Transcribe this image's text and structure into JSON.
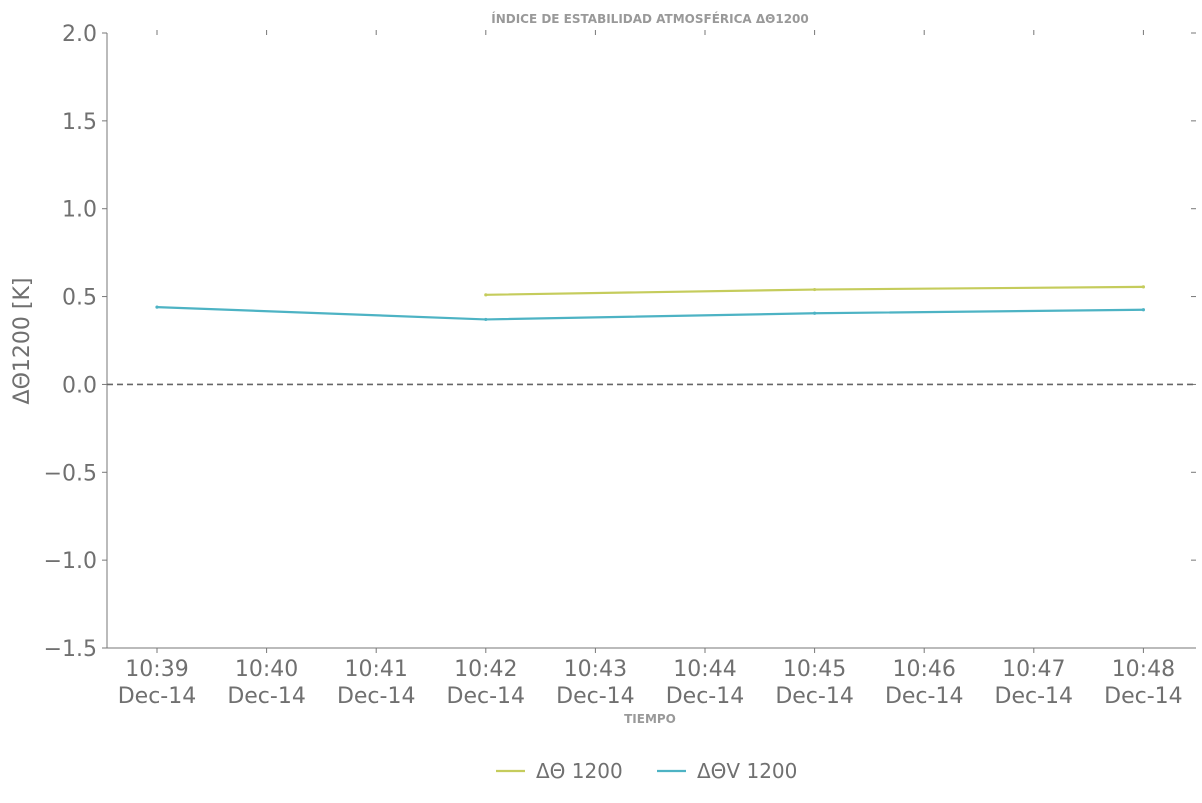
{
  "chart_data": {
    "type": "line",
    "title": "ÍNDICE DE ESTABILIDAD ATMOSFÉRICA ΔΘ1200",
    "xlabel": "TIEMPO",
    "ylabel": "ΔΘ1200 [K]",
    "ylim": [
      -1.5,
      2.0
    ],
    "yticks": [
      "2.0",
      "1.5",
      "1.0",
      "0.5",
      "0.0",
      "−0.5",
      "−1.0",
      "−1.5"
    ],
    "ytick_values": [
      2.0,
      1.5,
      1.0,
      0.5,
      0.0,
      -0.5,
      -1.0,
      -1.5
    ],
    "x": [
      "10:39",
      "10:40",
      "10:41",
      "10:42",
      "10:43",
      "10:44",
      "10:45",
      "10:46",
      "10:47",
      "10:48"
    ],
    "xtick_labels": [
      {
        "time": "10:39",
        "date": "Dec-14"
      },
      {
        "time": "10:40",
        "date": "Dec-14"
      },
      {
        "time": "10:41",
        "date": "Dec-14"
      },
      {
        "time": "10:42",
        "date": "Dec-14"
      },
      {
        "time": "10:43",
        "date": "Dec-14"
      },
      {
        "time": "10:44",
        "date": "Dec-14"
      },
      {
        "time": "10:45",
        "date": "Dec-14"
      },
      {
        "time": "10:46",
        "date": "Dec-14"
      },
      {
        "time": "10:47",
        "date": "Dec-14"
      },
      {
        "time": "10:48",
        "date": "Dec-14"
      }
    ],
    "reference_line": {
      "y": 0.0,
      "style": "dashed",
      "color": "#666666"
    },
    "grid": false,
    "legend_position": "bottom-center",
    "series": [
      {
        "name": "ΔΘ 1200",
        "color": "#c5cc5c",
        "points": [
          {
            "x": "10:42",
            "y": 0.51
          },
          {
            "x": "10:45",
            "y": 0.54
          },
          {
            "x": "10:48",
            "y": 0.555
          }
        ]
      },
      {
        "name": "ΔΘV 1200",
        "color": "#4db3c4",
        "points": [
          {
            "x": "10:39",
            "y": 0.44
          },
          {
            "x": "10:42",
            "y": 0.37
          },
          {
            "x": "10:45",
            "y": 0.405
          },
          {
            "x": "10:48",
            "y": 0.425
          }
        ]
      }
    ]
  }
}
